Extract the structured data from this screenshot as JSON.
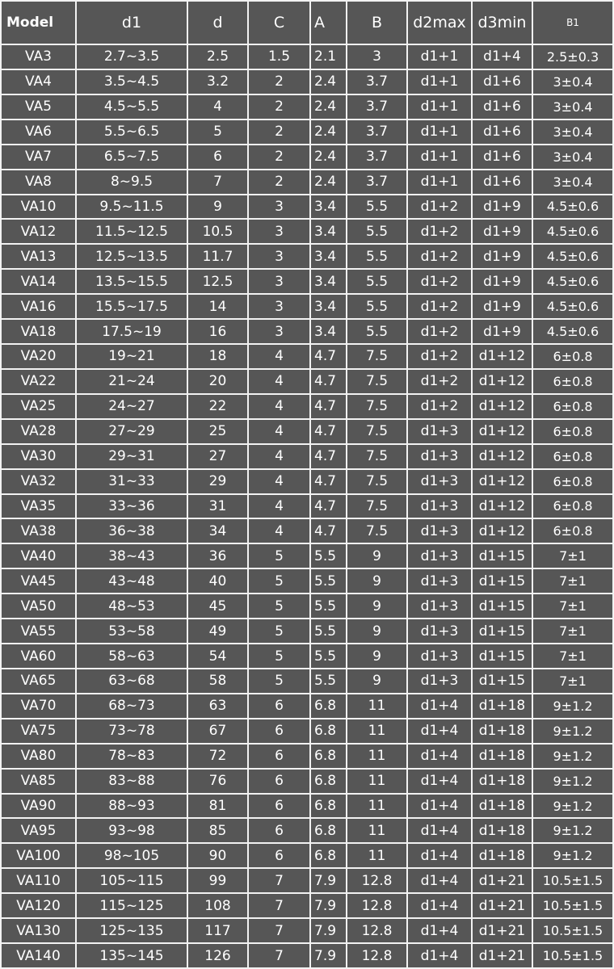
{
  "table": {
    "header": [
      "Model",
      "d1",
      "d",
      "C",
      "A",
      "B",
      "d2max",
      "d3min",
      "B1"
    ],
    "rows": [
      [
        "VA3",
        "2.7~3.5",
        "2.5",
        "1.5",
        "2.1",
        "3",
        "d1+1",
        "d1+4",
        "2.5±0.3"
      ],
      [
        "VA4",
        "3.5~4.5",
        "3.2",
        "2",
        "2.4",
        "3.7",
        "d1+1",
        "d1+6",
        "3±0.4"
      ],
      [
        "VA5",
        "4.5~5.5",
        "4",
        "2",
        "2.4",
        "3.7",
        "d1+1",
        "d1+6",
        "3±0.4"
      ],
      [
        "VA6",
        "5.5~6.5",
        "5",
        "2",
        "2.4",
        "3.7",
        "d1+1",
        "d1+6",
        "3±0.4"
      ],
      [
        "VA7",
        "6.5~7.5",
        "6",
        "2",
        "2.4",
        "3.7",
        "d1+1",
        "d1+6",
        "3±0.4"
      ],
      [
        "VA8",
        "8~9.5",
        "7",
        "2",
        "2.4",
        "3.7",
        "d1+1",
        "d1+6",
        "3±0.4"
      ],
      [
        "VA10",
        "9.5~11.5",
        "9",
        "3",
        "3.4",
        "5.5",
        "d1+2",
        "d1+9",
        "4.5±0.6"
      ],
      [
        "VA12",
        "11.5~12.5",
        "10.5",
        "3",
        "3.4",
        "5.5",
        "d1+2",
        "d1+9",
        "4.5±0.6"
      ],
      [
        "VA13",
        "12.5~13.5",
        "11.7",
        "3",
        "3.4",
        "5.5",
        "d1+2",
        "d1+9",
        "4.5±0.6"
      ],
      [
        "VA14",
        "13.5~15.5",
        "12.5",
        "3",
        "3.4",
        "5.5",
        "d1+2",
        "d1+9",
        "4.5±0.6"
      ],
      [
        "VA16",
        "15.5~17.5",
        "14",
        "3",
        "3.4",
        "5.5",
        "d1+2",
        "d1+9",
        "4.5±0.6"
      ],
      [
        "VA18",
        "17.5~19",
        "16",
        "3",
        "3.4",
        "5.5",
        "d1+2",
        "d1+9",
        "4.5±0.6"
      ],
      [
        "VA20",
        "19~21",
        "18",
        "4",
        "4.7",
        "7.5",
        "d1+2",
        "d1+12",
        "6±0.8"
      ],
      [
        "VA22",
        "21~24",
        "20",
        "4",
        "4.7",
        "7.5",
        "d1+2",
        "d1+12",
        "6±0.8"
      ],
      [
        "VA25",
        "24~27",
        "22",
        "4",
        "4.7",
        "7.5",
        "d1+2",
        "d1+12",
        "6±0.8"
      ],
      [
        "VA28",
        "27~29",
        "25",
        "4",
        "4.7",
        "7.5",
        "d1+3",
        "d1+12",
        "6±0.8"
      ],
      [
        "VA30",
        "29~31",
        "27",
        "4",
        "4.7",
        "7.5",
        "d1+3",
        "d1+12",
        "6±0.8"
      ],
      [
        "VA32",
        "31~33",
        "29",
        "4",
        "4.7",
        "7.5",
        "d1+3",
        "d1+12",
        "6±0.8"
      ],
      [
        "VA35",
        "33~36",
        "31",
        "4",
        "4.7",
        "7.5",
        "d1+3",
        "d1+12",
        "6±0.8"
      ],
      [
        "VA38",
        "36~38",
        "34",
        "4",
        "4.7",
        "7.5",
        "d1+3",
        "d1+12",
        "6±0.8"
      ],
      [
        "VA40",
        "38~43",
        "36",
        "5",
        "5.5",
        "9",
        "d1+3",
        "d1+15",
        "7±1"
      ],
      [
        "VA45",
        "43~48",
        "40",
        "5",
        "5.5",
        "9",
        "d1+3",
        "d1+15",
        "7±1"
      ],
      [
        "VA50",
        "48~53",
        "45",
        "5",
        "5.5",
        "9",
        "d1+3",
        "d1+15",
        "7±1"
      ],
      [
        "VA55",
        "53~58",
        "49",
        "5",
        "5.5",
        "9",
        "d1+3",
        "d1+15",
        "7±1"
      ],
      [
        "VA60",
        "58~63",
        "54",
        "5",
        "5.5",
        "9",
        "d1+3",
        "d1+15",
        "7±1"
      ],
      [
        "VA65",
        "63~68",
        "58",
        "5",
        "5.5",
        "9",
        "d1+3",
        "d1+15",
        "7±1"
      ],
      [
        "VA70",
        "68~73",
        "63",
        "6",
        "6.8",
        "11",
        "d1+4",
        "d1+18",
        "9±1.2"
      ],
      [
        "VA75",
        "73~78",
        "67",
        "6",
        "6.8",
        "11",
        "d1+4",
        "d1+18",
        "9±1.2"
      ],
      [
        "VA80",
        "78~83",
        "72",
        "6",
        "6.8",
        "11",
        "d1+4",
        "d1+18",
        "9±1.2"
      ],
      [
        "VA85",
        "83~88",
        "76",
        "6",
        "6.8",
        "11",
        "d1+4",
        "d1+18",
        "9±1.2"
      ],
      [
        "VA90",
        "88~93",
        "81",
        "6",
        "6.8",
        "11",
        "d1+4",
        "d1+18",
        "9±1.2"
      ],
      [
        "VA95",
        "93~98",
        "85",
        "6",
        "6.8",
        "11",
        "d1+4",
        "d1+18",
        "9±1.2"
      ],
      [
        "VA100",
        "98~105",
        "90",
        "6",
        "6.8",
        "11",
        "d1+4",
        "d1+18",
        "9±1.2"
      ],
      [
        "VA110",
        "105~115",
        "99",
        "7",
        "7.9",
        "12.8",
        "d1+4",
        "d1+21",
        "10.5±1.5"
      ],
      [
        "VA120",
        "115~125",
        "108",
        "7",
        "7.9",
        "12.8",
        "d1+4",
        "d1+21",
        "10.5±1.5"
      ],
      [
        "VA130",
        "125~135",
        "117",
        "7",
        "7.9",
        "12.8",
        "d1+4",
        "d1+21",
        "10.5±1.5"
      ],
      [
        "VA140",
        "135~145",
        "126",
        "7",
        "7.9",
        "12.8",
        "d1+4",
        "d1+21",
        "10.5±1.5"
      ]
    ]
  }
}
